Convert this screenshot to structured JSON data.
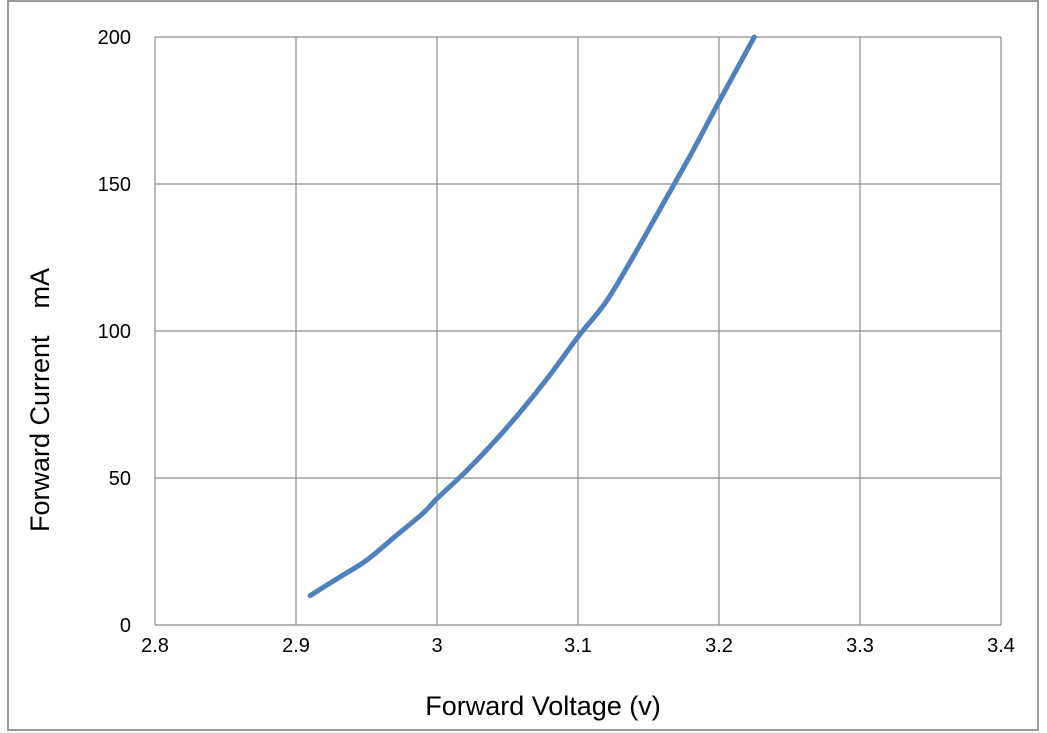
{
  "chart_data": {
    "type": "line",
    "xlabel": "Forward Voltage (v)",
    "ylabel": "Forward Current　mA",
    "xlim": [
      2.8,
      3.4
    ],
    "ylim": [
      0,
      200
    ],
    "x_ticks": [
      "2.8",
      "2.9",
      "3",
      "3.1",
      "3.2",
      "3.3",
      "3.4"
    ],
    "y_ticks": [
      "0",
      "50",
      "100",
      "150",
      "200"
    ],
    "grid": true,
    "series": [
      {
        "color": "#4f81bd",
        "x": [
          2.91,
          2.93,
          2.95,
          2.97,
          2.99,
          3.0,
          3.02,
          3.04,
          3.06,
          3.08,
          3.1,
          3.12,
          3.14,
          3.16,
          3.18,
          3.2,
          3.225
        ],
        "y": [
          10,
          16,
          22,
          30,
          38,
          43,
          52,
          62,
          73,
          85,
          98,
          110,
          126,
          143,
          160,
          178,
          200
        ]
      }
    ]
  }
}
